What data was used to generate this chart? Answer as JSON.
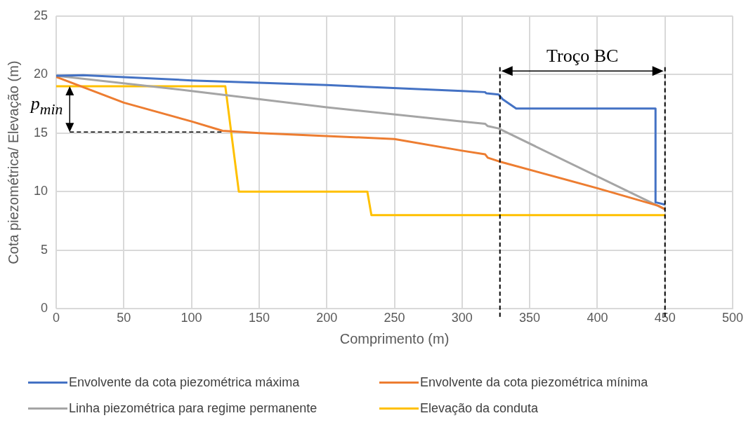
{
  "chart_data": {
    "type": "line",
    "xlabel": "Comprimento (m)",
    "ylabel": "Cota piezométrica/ Elevação (m)",
    "xlim": [
      0,
      500
    ],
    "xticks": [
      0,
      50,
      100,
      150,
      200,
      250,
      300,
      350,
      400,
      450,
      500
    ],
    "ylim": [
      0,
      25
    ],
    "yticks": [
      0,
      5,
      10,
      15,
      20,
      25
    ],
    "grid": true,
    "legend": "bottom",
    "marker": "none",
    "line_style": "solid",
    "series": [
      {
        "name": "Envolvente da cota piezométrica máxima",
        "color": "#4472c4",
        "x": [
          0,
          20,
          100,
          200,
          300,
          317,
          318,
          327,
          330,
          340,
          443,
          443,
          450
        ],
        "values": [
          19.9,
          19.95,
          19.5,
          19.1,
          18.6,
          18.5,
          18.4,
          18.3,
          17.9,
          17.1,
          17.1,
          9.1,
          8.9
        ]
      },
      {
        "name": "Envolvente da cota piezométrica mínima",
        "color": "#ed7d31",
        "x": [
          0,
          50,
          100,
          123,
          150,
          250,
          300,
          317,
          319,
          327,
          400,
          445,
          450
        ],
        "values": [
          19.8,
          17.6,
          16,
          15.2,
          15,
          14.5,
          13.5,
          13.2,
          12.9,
          12.6,
          10.3,
          8.8,
          8.5
        ]
      },
      {
        "name": "Linha piezométrica para regime permanente",
        "color": "#a5a5a5",
        "x": [
          0,
          100,
          200,
          300,
          317,
          319,
          327,
          450
        ],
        "values": [
          19.9,
          18.6,
          17.2,
          16,
          15.8,
          15.6,
          15.4,
          8.5
        ]
      },
      {
        "name": "Elevação da conduta",
        "color": "#ffc000",
        "x": [
          0,
          125,
          135,
          230,
          233,
          450
        ],
        "values": [
          19,
          19,
          10,
          10,
          8,
          8
        ]
      }
    ],
    "ref_lines": [
      {
        "axis": "x",
        "value": 328,
        "color": "#000000",
        "line_style": "dashed"
      },
      {
        "axis": "x",
        "value": 450,
        "color": "#000000",
        "line_style": "dashed"
      }
    ],
    "annotations": [
      "Troço BC",
      {
        "text": "p$_{min}$",
        "x": 124,
        "y": 15.1
      }
    ]
  }
}
